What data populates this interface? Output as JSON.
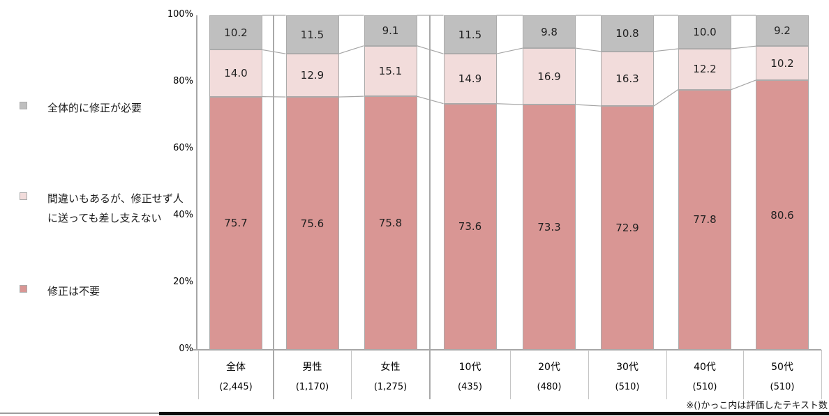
{
  "chart_data": {
    "type": "bar",
    "stacked": true,
    "percent": true,
    "title": "",
    "xlabel": "",
    "ylabel": "",
    "categories": [
      {
        "label": "全体",
        "count": "(2,445)"
      },
      {
        "label": "男性",
        "count": "(1,170)"
      },
      {
        "label": "女性",
        "count": "(1,275)"
      },
      {
        "label": "10代",
        "count": "(435)"
      },
      {
        "label": "20代",
        "count": "(480)"
      },
      {
        "label": "30代",
        "count": "(510)"
      },
      {
        "label": "40代",
        "count": "(510)"
      },
      {
        "label": "50代",
        "count": "(510)"
      }
    ],
    "series": [
      {
        "name": "修正は不要",
        "color": "#D99694",
        "stack_position": "bottom",
        "values": [
          75.7,
          75.6,
          75.8,
          73.6,
          73.3,
          72.9,
          77.8,
          80.6
        ]
      },
      {
        "name": "間違いもあるが、修正せず人に送っても差し支えない",
        "color": "#F2DCDB",
        "stack_position": "middle",
        "values": [
          14.0,
          12.9,
          15.1,
          14.9,
          16.9,
          16.3,
          12.2,
          10.2
        ]
      },
      {
        "name": "全体的に修正が必要",
        "color": "#BFBFBF",
        "stack_position": "top",
        "values": [
          10.2,
          11.5,
          9.1,
          11.5,
          9.8,
          10.8,
          10.0,
          9.2
        ]
      }
    ],
    "y_axis": {
      "min": 0,
      "max": 100,
      "ticks": [
        "100%",
        "80%",
        "60%",
        "40%",
        "20%",
        "0%"
      ]
    },
    "group_separators_after_category_index": [
      0,
      2
    ],
    "legend_position": "left",
    "grid": false,
    "note": "※()かっこ内は評価したテキスト数"
  },
  "legend": {
    "items": [
      {
        "color": "#BFBFBF",
        "label_lines": [
          "全体的に修正が必要"
        ]
      },
      {
        "color": "#F2DCDB",
        "label_lines": [
          "間違いもあるが、修正せず人",
          "に送っても差し支えない"
        ]
      },
      {
        "color": "#D99694",
        "label_lines": [
          "修正は不要"
        ]
      }
    ]
  },
  "colors": {
    "series_top": "#BFBFBF",
    "series_middle": "#F2DCDB",
    "series_bottom": "#D99694",
    "axis": "#a6a6a6",
    "connector": "#a6a6a6",
    "separator": "#a9a9a9",
    "cell_border": "#c4c4c4"
  }
}
